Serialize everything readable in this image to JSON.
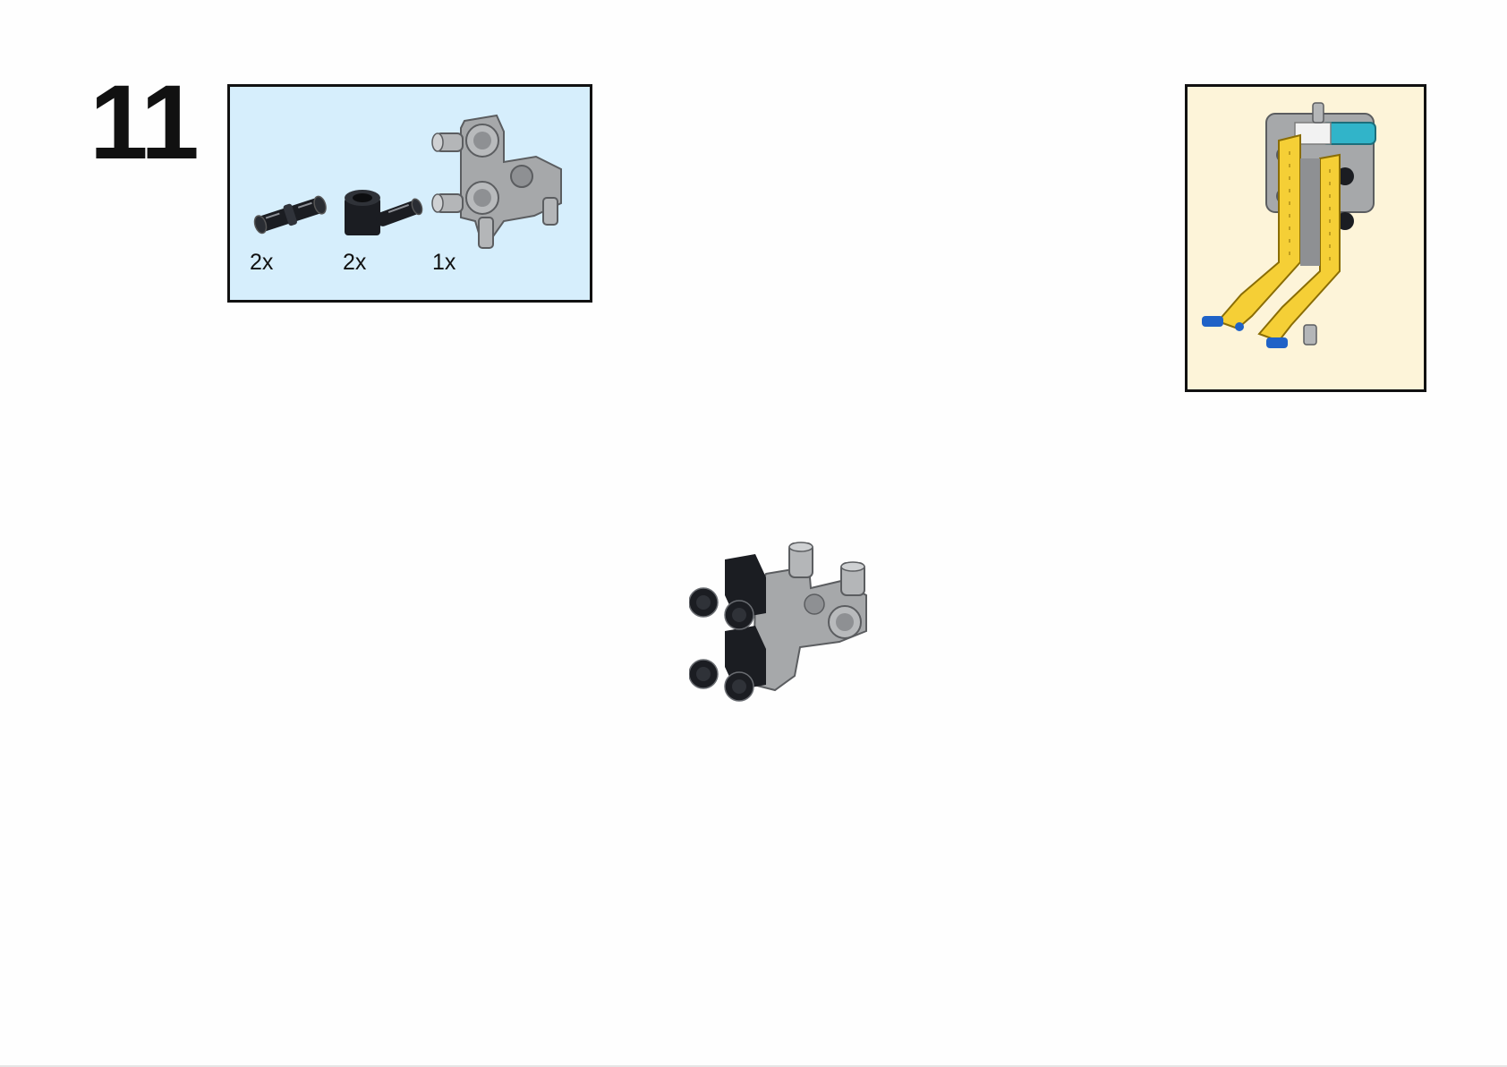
{
  "step": {
    "number": "11"
  },
  "parts_list": {
    "items": [
      {
        "quantity": "2x",
        "icon": "black-pin-icon"
      },
      {
        "quantity": "2x",
        "icon": "black-pin-connector-icon"
      },
      {
        "quantity": "1x",
        "icon": "gray-axle-connector-block-icon"
      }
    ]
  },
  "colors": {
    "parts_box_bg": "#d6eefc",
    "preview_box_bg": "#fdf4d9",
    "part_black": "#1b1d22",
    "part_gray": "#a6a8aa",
    "beam_yellow": "#f5cf36",
    "accent_blue": "#1f62c7",
    "accent_teal": "#31b4c9"
  }
}
